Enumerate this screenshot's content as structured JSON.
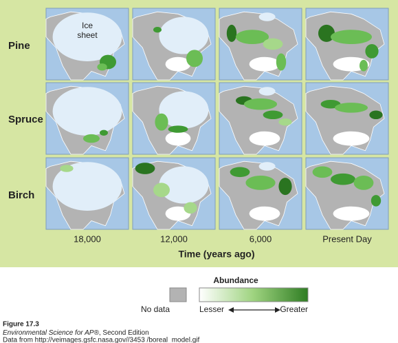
{
  "rows": [
    "Pine",
    "Spruce",
    "Birch"
  ],
  "columns": [
    "18,000",
    "12,000",
    "6,000",
    "Present Day"
  ],
  "axis_title": "Time (years ago)",
  "ice_label": "Ice sheet",
  "legend": {
    "title": "Abundance",
    "no_data": "No data",
    "lesser": "Lesser",
    "greater": "Greater"
  },
  "caption": {
    "figure": "Figure 17.3",
    "book": "Environmental Science for AP®",
    "edition": ", Second Edition",
    "data_from": "Data from http://veimages.gsfc.nasa.gov//3453 /boreal_model.gif"
  }
}
